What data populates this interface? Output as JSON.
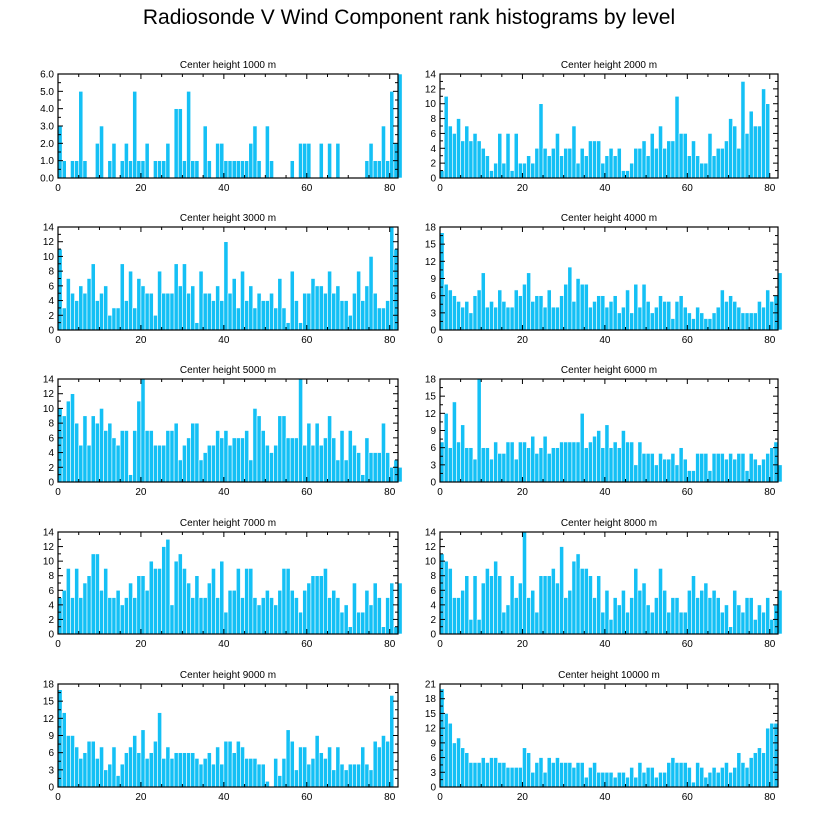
{
  "figure": {
    "title": "Radiosonde V Wind Component rank histograms by level",
    "bar_color": "#14c0f5",
    "bar_edge_color": "#ffffff"
  },
  "chart_data": [
    {
      "type": "bar",
      "title": "Center height 1000 m",
      "x_start": 0,
      "xlim": [
        0,
        82
      ],
      "xticks": [
        0,
        20,
        40,
        60,
        80
      ],
      "ylim": [
        0,
        6
      ],
      "yticks": [
        "0.0",
        "1.0",
        "2.0",
        "3.0",
        "4.0",
        "5.0",
        "6.0"
      ],
      "values": [
        3,
        1,
        0,
        1,
        1,
        5,
        1,
        0,
        0,
        2,
        3,
        0,
        1,
        2,
        0,
        1,
        2,
        1,
        5,
        1,
        1,
        2,
        0,
        1,
        1,
        1,
        2,
        0,
        4,
        4,
        1,
        5,
        1,
        1,
        0,
        3,
        1,
        0,
        2,
        2,
        1,
        1,
        1,
        1,
        1,
        1,
        2,
        3,
        1,
        0,
        3,
        1,
        0,
        0,
        0,
        0,
        1,
        0,
        2,
        2,
        2,
        0,
        0,
        2,
        0,
        2,
        0,
        2,
        0,
        0,
        0,
        0,
        0,
        0,
        1,
        2,
        1,
        1,
        3,
        1,
        5,
        2,
        6
      ]
    },
    {
      "type": "bar",
      "title": "Center height 2000 m",
      "x_start": 0,
      "xlim": [
        0,
        82
      ],
      "xticks": [
        0,
        20,
        40,
        60,
        80
      ],
      "ylim": [
        0,
        14
      ],
      "yticks": [
        "0",
        "2",
        "4",
        "6",
        "8",
        "10",
        "12",
        "14"
      ],
      "values": [
        1,
        11,
        7,
        6,
        8,
        5,
        7,
        5,
        6,
        5,
        4,
        3,
        1,
        2,
        6,
        2,
        6,
        1,
        6,
        2,
        2,
        3,
        2,
        4,
        10,
        4,
        3,
        4,
        6,
        3,
        4,
        4,
        7,
        2,
        4,
        3,
        5,
        5,
        5,
        2,
        3,
        4,
        3,
        4,
        1,
        1,
        2,
        4,
        4,
        5,
        3,
        6,
        4,
        7,
        4,
        5,
        5,
        11,
        6,
        6,
        3,
        5,
        3,
        2,
        2,
        6,
        3,
        4,
        4,
        5,
        8,
        7,
        4,
        13,
        6,
        9,
        7,
        7,
        12,
        10,
        0,
        0,
        0
      ]
    },
    {
      "type": "bar",
      "title": "Center height 3000 m",
      "x_start": 0,
      "xlim": [
        0,
        82
      ],
      "xticks": [
        0,
        20,
        40,
        60,
        80
      ],
      "ylim": [
        0,
        14
      ],
      "yticks": [
        "0",
        "2",
        "4",
        "6",
        "8",
        "10",
        "12",
        "14"
      ],
      "values": [
        11,
        3,
        7,
        5,
        4,
        6,
        5,
        7,
        9,
        4,
        5,
        6,
        2,
        3,
        3,
        9,
        4,
        8,
        3,
        7,
        6,
        5,
        5,
        2,
        8,
        5,
        5,
        5,
        9,
        6,
        9,
        5,
        6,
        1,
        8,
        5,
        5,
        4,
        6,
        4,
        12,
        5,
        7,
        3,
        8,
        4,
        6,
        3,
        5,
        4,
        4,
        5,
        3,
        7,
        3,
        1,
        8,
        4,
        1,
        5,
        5,
        7,
        6,
        6,
        5,
        8,
        5,
        6,
        4,
        4,
        2,
        5,
        8,
        4,
        6,
        10,
        5,
        3,
        3,
        4,
        14,
        11,
        0
      ]
    },
    {
      "type": "bar",
      "title": "Center height 4000 m",
      "x_start": 0,
      "xlim": [
        0,
        82
      ],
      "xticks": [
        0,
        20,
        40,
        60,
        80
      ],
      "ylim": [
        0,
        18
      ],
      "yticks": [
        "0",
        "3",
        "6",
        "9",
        "12",
        "15",
        "18"
      ],
      "values": [
        17,
        8,
        7,
        6,
        5,
        4,
        5,
        3,
        6,
        7,
        10,
        4,
        5,
        4,
        7,
        5,
        4,
        4,
        7,
        6,
        8,
        10,
        5,
        6,
        6,
        4,
        7,
        4,
        4,
        6,
        8,
        11,
        5,
        9,
        8,
        8,
        4,
        5,
        6,
        6,
        4,
        5,
        6,
        3,
        4,
        7,
        3,
        8,
        4,
        8,
        5,
        3,
        4,
        6,
        5,
        5,
        2,
        5,
        6,
        4,
        3,
        2,
        4,
        3,
        2,
        2,
        3,
        4,
        7,
        5,
        6,
        5,
        4,
        3,
        3,
        3,
        3,
        5,
        4,
        7,
        5,
        6,
        10
      ]
    },
    {
      "type": "bar",
      "title": "Center height 5000 m",
      "x_start": 0,
      "xlim": [
        0,
        82
      ],
      "xticks": [
        0,
        20,
        40,
        60,
        80
      ],
      "ylim": [
        0,
        14
      ],
      "yticks": [
        "0",
        "2",
        "4",
        "6",
        "8",
        "10",
        "12",
        "14"
      ],
      "values": [
        10,
        9,
        11,
        12,
        8,
        5,
        9,
        5,
        9,
        8,
        10,
        7,
        8,
        6,
        5,
        7,
        7,
        1,
        7,
        11,
        14,
        7,
        7,
        5,
        5,
        5,
        7,
        7,
        8,
        3,
        5,
        6,
        8,
        8,
        3,
        4,
        5,
        5,
        7,
        6,
        7,
        5,
        6,
        6,
        6,
        7,
        3,
        10,
        9,
        7,
        5,
        4,
        5,
        9,
        9,
        6,
        6,
        6,
        14,
        5,
        8,
        5,
        8,
        5,
        6,
        9,
        6,
        3,
        7,
        3,
        7,
        5,
        4,
        1,
        6,
        4,
        4,
        4,
        8,
        4,
        2,
        3,
        2
      ]
    },
    {
      "type": "bar",
      "title": "Center height 6000 m",
      "x_start": 0,
      "xlim": [
        0,
        82
      ],
      "xticks": [
        0,
        20,
        40,
        60,
        80
      ],
      "ylim": [
        0,
        18
      ],
      "yticks": [
        "0",
        "3",
        "6",
        "9",
        "12",
        "15",
        "18"
      ],
      "values": [
        7,
        12,
        6,
        14,
        7,
        10,
        6,
        6,
        4,
        18,
        6,
        6,
        4,
        7,
        5,
        5,
        7,
        7,
        4,
        7,
        7,
        6,
        8,
        5,
        6,
        8,
        5,
        6,
        6,
        7,
        7,
        7,
        7,
        7,
        12,
        6,
        7,
        8,
        9,
        6,
        10,
        6,
        7,
        6,
        9,
        7,
        7,
        3,
        7,
        5,
        5,
        5,
        3,
        5,
        4,
        4,
        5,
        3,
        6,
        4,
        2,
        2,
        5,
        5,
        5,
        2,
        5,
        5,
        5,
        4,
        5,
        4,
        5,
        5,
        2,
        5,
        4,
        3,
        4,
        5,
        6,
        7,
        3
      ]
    },
    {
      "type": "bar",
      "title": "Center height 7000 m",
      "x_start": 0,
      "xlim": [
        0,
        82
      ],
      "xticks": [
        0,
        20,
        40,
        60,
        80
      ],
      "ylim": [
        0,
        14
      ],
      "yticks": [
        "0",
        "2",
        "4",
        "6",
        "8",
        "10",
        "12",
        "14"
      ],
      "values": [
        5,
        6,
        9,
        5,
        9,
        5,
        7,
        8,
        11,
        11,
        6,
        9,
        5,
        5,
        6,
        4,
        5,
        7,
        5,
        8,
        8,
        6,
        10,
        9,
        9,
        12,
        13,
        4,
        10,
        11,
        9,
        7,
        5,
        8,
        5,
        5,
        7,
        9,
        5,
        10,
        3,
        6,
        6,
        9,
        5,
        9,
        9,
        5,
        4,
        5,
        6,
        5,
        4,
        6,
        9,
        9,
        6,
        5,
        3,
        6,
        7,
        8,
        8,
        8,
        9,
        5,
        6,
        5,
        3,
        4,
        1,
        7,
        3,
        3,
        6,
        4,
        7,
        5,
        1,
        5,
        7,
        1,
        7
      ]
    },
    {
      "type": "bar",
      "title": "Center height 8000 m",
      "x_start": 0,
      "xlim": [
        0,
        82
      ],
      "xticks": [
        0,
        20,
        40,
        60,
        80
      ],
      "ylim": [
        0,
        14
      ],
      "yticks": [
        "0",
        "2",
        "4",
        "6",
        "8",
        "10",
        "12",
        "14"
      ],
      "values": [
        11,
        10,
        9,
        5,
        5,
        6,
        8,
        2,
        8,
        2,
        7,
        9,
        8,
        10,
        8,
        3,
        4,
        8,
        5,
        7,
        14,
        5,
        6,
        3,
        8,
        8,
        8,
        9,
        7,
        12,
        5,
        6,
        10,
        11,
        9,
        9,
        8,
        5,
        8,
        3,
        6,
        2,
        5,
        4,
        6,
        3,
        5,
        9,
        6,
        7,
        4,
        3,
        5,
        9,
        6,
        3,
        5,
        5,
        3,
        3,
        6,
        8,
        5,
        6,
        7,
        5,
        6,
        5,
        3,
        4,
        1,
        6,
        4,
        3,
        5,
        5,
        2,
        4,
        3,
        5,
        2,
        4,
        6
      ]
    },
    {
      "type": "bar",
      "title": "Center height 9000 m",
      "x_start": 0,
      "xlim": [
        0,
        82
      ],
      "xticks": [
        0,
        20,
        40,
        60,
        80
      ],
      "ylim": [
        0,
        18
      ],
      "yticks": [
        "0",
        "3",
        "6",
        "9",
        "12",
        "15",
        "18"
      ],
      "values": [
        17,
        13,
        9,
        9,
        7,
        5,
        6,
        8,
        8,
        5,
        7,
        3,
        4,
        7,
        2,
        4,
        6,
        7,
        9,
        6,
        10,
        5,
        6,
        8,
        13,
        5,
        7,
        5,
        6,
        6,
        6,
        6,
        6,
        5,
        4,
        5,
        6,
        4,
        7,
        4,
        8,
        8,
        6,
        8,
        7,
        5,
        5,
        5,
        4,
        4,
        1,
        0,
        5,
        2,
        5,
        10,
        8,
        3,
        7,
        7,
        4,
        5,
        9,
        6,
        5,
        7,
        3,
        7,
        4,
        3,
        4,
        4,
        4,
        7,
        4,
        3,
        8,
        7,
        9,
        8,
        16,
        0,
        0
      ]
    },
    {
      "type": "bar",
      "title": "Center height 10000 m",
      "x_start": 0,
      "xlim": [
        0,
        82
      ],
      "xticks": [
        0,
        20,
        40,
        60,
        80
      ],
      "ylim": [
        0,
        21
      ],
      "yticks": [
        "0",
        "3",
        "6",
        "9",
        "12",
        "15",
        "18",
        "21"
      ],
      "values": [
        20,
        15,
        13,
        9,
        10,
        8,
        7,
        5,
        5,
        5,
        6,
        5,
        6,
        6,
        5,
        5,
        4,
        4,
        4,
        4,
        8,
        7,
        3,
        5,
        6,
        3,
        6,
        5,
        6,
        5,
        5,
        5,
        4,
        5,
        5,
        2,
        4,
        5,
        3,
        3,
        3,
        3,
        2,
        3,
        3,
        2,
        4,
        2,
        5,
        3,
        4,
        4,
        2,
        3,
        3,
        5,
        6,
        5,
        5,
        5,
        4,
        1,
        5,
        4,
        2,
        3,
        4,
        3,
        4,
        5,
        3,
        4,
        7,
        5,
        4,
        6,
        7,
        8,
        7,
        12,
        13,
        13,
        0
      ]
    }
  ]
}
